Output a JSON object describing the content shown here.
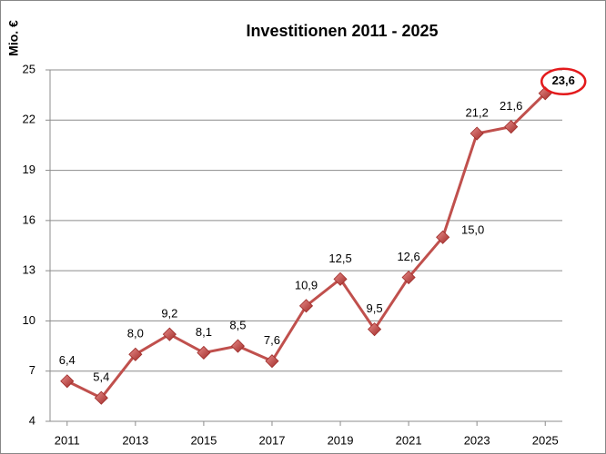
{
  "chart_data": {
    "type": "line",
    "title": "Investitionen 2011 - 2025",
    "y_label": "Mio. €",
    "x": [
      2011,
      2012,
      2013,
      2014,
      2015,
      2016,
      2017,
      2018,
      2019,
      2020,
      2021,
      2022,
      2023,
      2024,
      2025
    ],
    "series": [
      {
        "name": "Investitionen",
        "color": "#c0504d",
        "values": [
          6.4,
          5.4,
          8.0,
          9.2,
          8.1,
          8.5,
          7.6,
          10.9,
          12.5,
          9.5,
          12.6,
          15.0,
          21.2,
          21.6,
          23.6
        ],
        "value_labels": [
          "6,4",
          "5,4",
          "8,0",
          "9,2",
          "8,1",
          "8,5",
          "7,6",
          "10,9",
          "12,5",
          "9,5",
          "12,6",
          "15,0",
          "21,2",
          "21,6",
          "23,6"
        ]
      }
    ],
    "xlim": [
      2010.5,
      2025.5
    ],
    "xticks": [
      2011,
      2013,
      2015,
      2017,
      2019,
      2021,
      2023,
      2025
    ],
    "ylim": [
      4,
      25
    ],
    "yticks": [
      4,
      7,
      10,
      13,
      16,
      19,
      22,
      25
    ],
    "grid": true
  }
}
